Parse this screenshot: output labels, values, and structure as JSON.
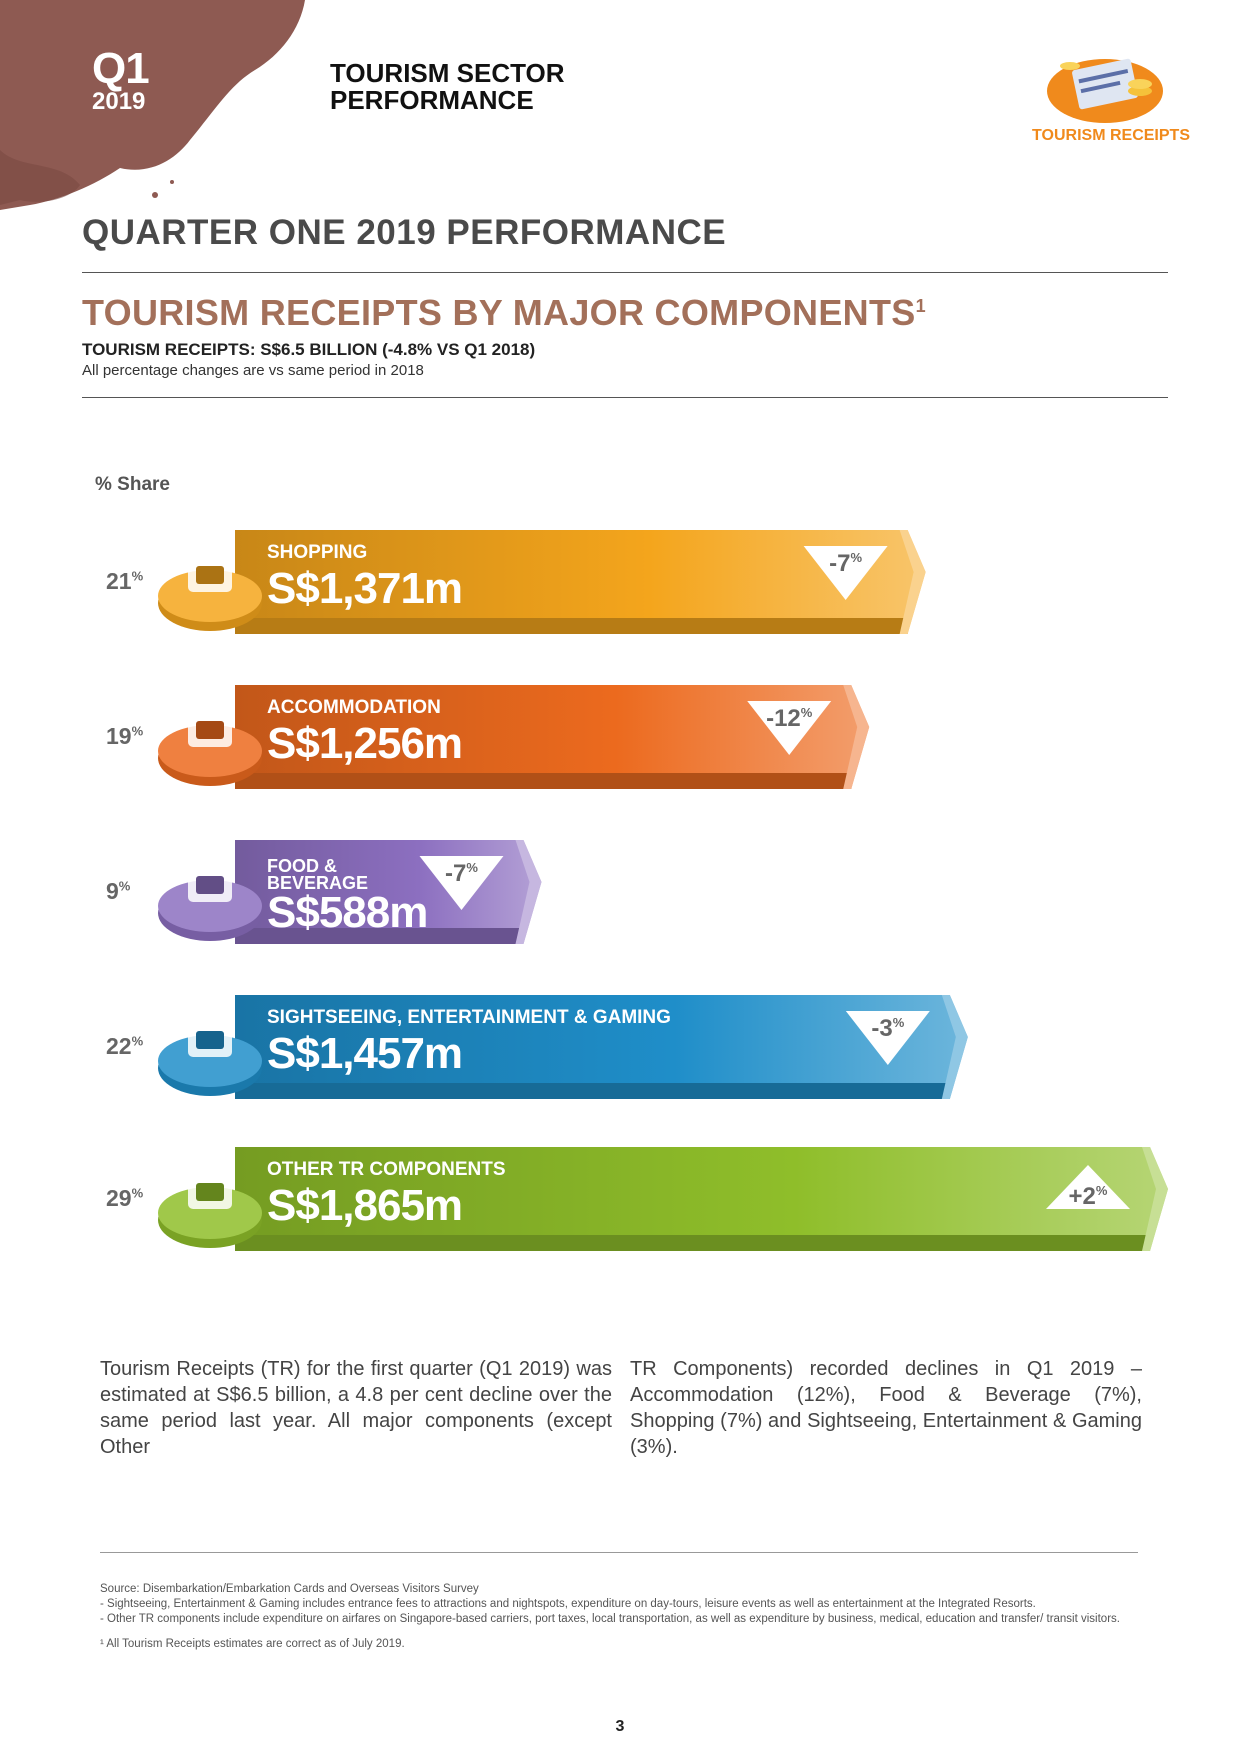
{
  "header": {
    "quarter": "Q1",
    "year": "2019",
    "sector_title": "TOURISM SECTOR PERFORMANCE",
    "logo_label": "TOURISM RECEIPTS"
  },
  "page_heading": "QUARTER ONE 2019 PERFORMANCE",
  "section": {
    "title": "TOURISM RECEIPTS BY MAJOR COMPONENTS",
    "title_sup": "1",
    "subhead": "TOURISM RECEIPTS: S$6.5 BILLION (-4.8% VS Q1 2018)",
    "note": "All percentage changes are vs same period in 2018"
  },
  "chart_data": {
    "type": "bar",
    "share_label": "% Share",
    "categories": [
      "SHOPPING",
      "ACCOMMODATION",
      "FOOD & BEVERAGE",
      "SIGHTSEEING, ENTERTAINMENT & GAMING",
      "OTHER TR COMPONENTS"
    ],
    "values": [
      1371,
      1256,
      588,
      1457,
      1865
    ],
    "value_labels": [
      "S$1,371m",
      "S$1,256m",
      "S$588m",
      "S$1,457m",
      "S$1,865m"
    ],
    "shares": [
      21,
      19,
      9,
      22,
      29
    ],
    "changes": [
      "-7",
      "-12",
      "-7",
      "-3",
      "+2"
    ],
    "change_direction": [
      "down",
      "down",
      "down",
      "down",
      "up"
    ],
    "colors": [
      "#f4a51c",
      "#ec6a1e",
      "#8c6fc0",
      "#1f8ec9",
      "#8fbe2a"
    ]
  },
  "body": {
    "col1": "Tourism Receipts (TR) for the first quarter (Q1 2019) was estimated at S$6.5 billion, a 4.8 per cent decline over the same period last year. All major components (except Other",
    "col2": "TR Components) recorded declines in Q1 2019 – Accommodation (12%), Food & Beverage (7%), Shopping (7%) and Sightseeing, Entertainment & Gaming (3%)."
  },
  "footnotes": {
    "source": "Source: Disembarkation/Embarkation Cards and Overseas Visitors Survey",
    "note1": "- Sightseeing, Entertainment & Gaming includes entrance fees to attractions and nightspots, expenditure on day-tours, leisure events as well as entertainment at the Integrated Resorts.",
    "note2": "- Other TR components include expenditure on airfares on Singapore-based carriers, port taxes, local transportation, as well as expenditure by business, medical, education and transfer/ transit visitors.",
    "note3": "¹ All Tourism Receipts estimates are correct as of July 2019."
  },
  "page_number": "3",
  "icons": [
    "shopping-bag-icon",
    "bed-icon",
    "burger-drink-icon",
    "camera-hat-icon",
    "tablet-card-icon"
  ]
}
